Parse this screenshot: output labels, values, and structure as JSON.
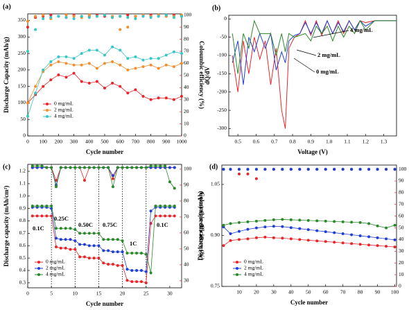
{
  "chart_data": [
    {
      "type": "line",
      "panel_label": "(a)",
      "xlabel": "Cycle number",
      "ylabel": "Discharge Capacity (mAh/g)",
      "y2label": "Coloumbic efficiency (%)",
      "xlim": [
        0,
        1000
      ],
      "xticks": [
        0,
        100,
        200,
        300,
        400,
        500,
        600,
        700,
        800,
        900,
        1000
      ],
      "ylim": [
        0,
        370
      ],
      "yticks": [
        0,
        50,
        100,
        150,
        200,
        250,
        300,
        350
      ],
      "y2lim": [
        0,
        101
      ],
      "y2ticks": [
        0,
        10,
        20,
        30,
        40,
        50,
        60,
        70,
        80,
        90,
        100
      ],
      "y2color": "#e8262a",
      "legend": "lower left",
      "x": [
        0,
        50,
        100,
        150,
        200,
        250,
        300,
        350,
        400,
        450,
        500,
        550,
        600,
        650,
        700,
        750,
        800,
        850,
        900,
        950,
        1000
      ],
      "series": [
        {
          "name": "0 mg/mL",
          "color": "#e8262a",
          "mode": "lines+markers",
          "values": [
            100,
            125,
            150,
            170,
            185,
            178,
            190,
            165,
            160,
            165,
            145,
            160,
            150,
            130,
            140,
            120,
            110,
            115,
            115,
            110,
            120
          ]
        },
        {
          "name": "2 mg/mL",
          "color": "#f28e2b",
          "mode": "lines+markers",
          "values": [
            100,
            150,
            195,
            215,
            225,
            220,
            215,
            215,
            220,
            205,
            220,
            225,
            215,
            200,
            205,
            210,
            215,
            205,
            215,
            210,
            220
          ]
        },
        {
          "name": "4 mg/mL",
          "color": "#35c6c6",
          "mode": "lines+markers",
          "values": [
            60,
            130,
            200,
            225,
            240,
            240,
            235,
            250,
            260,
            260,
            245,
            270,
            260,
            235,
            240,
            230,
            235,
            235,
            245,
            255,
            250
          ]
        },
        {
          "color": "#e8262a",
          "axis": "y2",
          "mode": "markers",
          "values": [
            90,
            98,
            99,
            100,
            99,
            98,
            100,
            99,
            99,
            100,
            99,
            98,
            99,
            100,
            99,
            99,
            100,
            99,
            99,
            100,
            99
          ]
        },
        {
          "color": "#f28e2b",
          "axis": "y2",
          "mode": "markers",
          "values": [
            95,
            99,
            100,
            97,
            99,
            100,
            99,
            98,
            100,
            99,
            100,
            99,
            88,
            90,
            99,
            100,
            99,
            100,
            99,
            99,
            100
          ]
        },
        {
          "color": "#35c6c6",
          "axis": "y2",
          "mode": "markers",
          "values": [
            70,
            88,
            97,
            98,
            99,
            98,
            97,
            99,
            98,
            99,
            100,
            98,
            99,
            98,
            97,
            99,
            98,
            99,
            100,
            98,
            99
          ]
        }
      ]
    },
    {
      "type": "line",
      "panel_label": "(b)",
      "xlabel": "Voltage (V)",
      "ylabel": "dQ/dV",
      "xlim": [
        0.45,
        1.37
      ],
      "xticks": [
        0.5,
        0.6,
        0.7,
        0.8,
        0.9,
        {
          "value": 1,
          "label": "1.0"
        },
        1.1,
        1.2,
        1.3
      ],
      "ylim": [
        -320,
        10
      ],
      "yticks": [
        -300,
        -250,
        -200,
        -150,
        -100,
        -50,
        0
      ],
      "x": [
        0.47,
        0.5,
        0.53,
        0.56,
        0.59,
        0.62,
        0.65,
        0.68,
        0.71,
        0.74,
        0.76,
        0.78,
        0.81,
        0.84,
        0.87,
        0.9,
        0.93,
        0.96,
        0.99,
        1.02,
        1.05,
        1.08,
        1.11,
        1.14,
        1.17,
        1.2,
        1.25,
        1.3,
        1.37
      ],
      "annotations": [
        "4 mg/mL",
        "2 mg/mL",
        "0 mg/mL"
      ],
      "series": [
        {
          "color": "#e8262a",
          "mode": "lines",
          "values": [
            -100,
            -200,
            -60,
            -150,
            -50,
            -110,
            -60,
            -180,
            -80,
            -250,
            -300,
            -80,
            -50,
            -40,
            -5,
            -45,
            -5,
            -45,
            -5,
            -40,
            -5,
            -40,
            -5,
            -30,
            -5,
            -10,
            -5,
            -5,
            -5
          ]
        },
        {
          "color": "#1f3fd6",
          "mode": "lines",
          "values": [
            -120,
            -60,
            -180,
            -50,
            -90,
            -40,
            -80,
            -40,
            -140,
            -90,
            -120,
            -60,
            -45,
            -40,
            -10,
            -40,
            -10,
            -40,
            -5,
            -40,
            -10,
            -35,
            -5,
            -30,
            -5,
            -20,
            -5,
            -5,
            -5
          ]
        },
        {
          "color": "#2a8a2a",
          "mode": "lines",
          "values": [
            -40,
            -150,
            -40,
            -80,
            -5,
            -40,
            -40,
            -40,
            -100,
            -40,
            -90,
            -40,
            -50,
            -45,
            -40,
            -60,
            -20,
            -40,
            -20,
            -60,
            -20,
            -50,
            -20,
            -40,
            -5,
            -30,
            -5,
            -5,
            -5
          ]
        }
      ]
    },
    {
      "type": "line",
      "panel_label": "(c)",
      "xlabel": "Cycle number",
      "ylabel": "Discharge capacity (mAh/cm²)",
      "y2label": "Coloumbic efficiency (%)",
      "xlim": [
        0,
        32.5
      ],
      "xticks": [
        0,
        5,
        10,
        15,
        20,
        25,
        30
      ],
      "ylim": [
        0.26,
        1.256
      ],
      "yticks": [
        0.3,
        0.4,
        0.5,
        0.6,
        0.7,
        0.8,
        0.9,
        {
          "value": 1,
          "label": "1.0"
        },
        1.1,
        1.2
      ],
      "y2lim": [
        25.6,
        103
      ],
      "y2ticks": [
        30,
        40,
        50,
        60,
        70,
        80,
        90,
        100
      ],
      "y2color": "#e8262a",
      "legend": "lower left",
      "vlines": [
        5,
        10,
        15,
        20,
        25
      ],
      "annotations": [
        "0.1C",
        "0.25C",
        "0.50C",
        "0.75C",
        "1C",
        "0.1C"
      ],
      "x": [
        1,
        2,
        3,
        4,
        5,
        6,
        7,
        8,
        9,
        10,
        11,
        12,
        13,
        14,
        15,
        16,
        17,
        18,
        19,
        20,
        21,
        22,
        23,
        24,
        25,
        26,
        27,
        28,
        29,
        30,
        31
      ],
      "series": [
        {
          "name": "0 mg/mL",
          "color": "#e8262a",
          "mode": "lines+markers",
          "values": [
            0.84,
            0.84,
            0.84,
            0.84,
            0.84,
            0.59,
            0.58,
            0.58,
            0.57,
            0.57,
            0.51,
            0.51,
            0.5,
            0.5,
            0.5,
            0.46,
            0.45,
            0.45,
            0.44,
            0.44,
            0.32,
            0.31,
            0.31,
            0.31,
            0.3,
            0.78,
            0.84,
            0.84,
            0.84,
            0.84,
            0.84
          ]
        },
        {
          "name": "2 mg/mL",
          "color": "#1f3fd6",
          "mode": "lines+markers",
          "values": [
            0.91,
            0.91,
            0.91,
            0.91,
            0.9,
            0.66,
            0.65,
            0.65,
            0.65,
            0.64,
            0.61,
            0.61,
            0.6,
            0.6,
            0.6,
            0.56,
            0.56,
            0.55,
            0.55,
            0.55,
            0.41,
            0.4,
            0.4,
            0.4,
            0.39,
            0.88,
            0.91,
            0.91,
            0.91,
            0.91,
            0.91
          ]
        },
        {
          "name": "4 mg/mL",
          "color": "#2a8a2a",
          "mode": "lines+markers",
          "values": [
            0.92,
            0.92,
            0.92,
            0.92,
            0.92,
            0.74,
            0.74,
            0.74,
            0.74,
            0.73,
            0.7,
            0.7,
            0.7,
            0.7,
            0.7,
            0.65,
            0.65,
            0.65,
            0.65,
            0.64,
            0.54,
            0.54,
            0.54,
            0.54,
            0.53,
            0.38,
            0.92,
            0.92,
            0.92,
            0.92,
            0.92
          ]
        },
        {
          "color": "#e8262a",
          "axis": "y2",
          "mode": "lines+markers",
          "values": [
            101,
            101,
            101,
            101,
            101,
            93,
            101,
            101,
            101,
            101,
            101,
            93,
            101,
            101,
            101,
            101,
            101,
            94,
            101,
            101,
            101,
            101,
            101,
            101,
            101,
            101,
            101,
            101,
            101,
            101,
            101
          ]
        },
        {
          "color": "#1f3fd6",
          "axis": "y2",
          "mode": "lines+markers",
          "values": [
            101,
            101,
            101,
            101,
            101,
            90,
            101,
            101,
            101,
            101,
            101,
            101,
            101,
            101,
            101,
            101,
            101,
            96,
            101,
            101,
            101,
            101,
            101,
            101,
            101,
            101,
            101,
            101,
            101,
            101,
            101
          ]
        },
        {
          "color": "#2a8a2a",
          "axis": "y2",
          "mode": "lines+markers",
          "values": [
            102,
            102,
            102,
            101,
            101,
            89,
            101,
            101,
            101,
            101,
            101,
            101,
            101,
            101,
            101,
            101,
            101,
            89,
            101,
            101,
            101,
            101,
            101,
            101,
            101,
            102,
            102,
            102,
            102,
            92,
            88
          ]
        }
      ]
    },
    {
      "type": "line",
      "panel_label": "(d)",
      "xlabel": "Cycle number",
      "ylabel": "Discharge capacity (mAh)",
      "y2label": "Coloumbic efficiency (%)",
      "xlim": [
        0,
        101
      ],
      "xticks": [
        10,
        20,
        30,
        40,
        50,
        60,
        70,
        80,
        90,
        100
      ],
      "ylim": [
        0.75,
        1.107
      ],
      "yticks": [
        0.75,
        {
          "value": 0.9,
          "label": "0.90"
        },
        1.05
      ],
      "y2lim": [
        0,
        103.6
      ],
      "y2ticks": [
        0,
        10,
        20,
        30,
        40,
        50,
        60,
        70,
        80,
        90,
        100
      ],
      "y2color": "#e8262a",
      "legend": "lower left",
      "x": [
        1,
        5,
        10,
        15,
        20,
        25,
        30,
        35,
        40,
        45,
        50,
        55,
        60,
        65,
        70,
        75,
        80,
        85,
        90,
        95,
        100
      ],
      "series": [
        {
          "name": "0 mg/mL",
          "color": "#e8262a",
          "mode": "lines+markers",
          "values": [
            0.87,
            0.885,
            0.888,
            0.89,
            0.893,
            0.895,
            0.893,
            0.892,
            0.89,
            0.888,
            0.886,
            0.884,
            0.882,
            0.88,
            0.878,
            0.876,
            0.874,
            0.872,
            0.87,
            0.868,
            0.866
          ]
        },
        {
          "name": "2 mg/mL",
          "color": "#1f3fd6",
          "mode": "lines+markers",
          "values": [
            0.925,
            0.905,
            0.912,
            0.918,
            0.922,
            0.925,
            0.927,
            0.926,
            0.923,
            0.92,
            0.917,
            0.914,
            0.911,
            0.908,
            0.905,
            0.902,
            0.899,
            0.896,
            0.893,
            0.89,
            0.887
          ]
        },
        {
          "name": "4 mg/mL",
          "color": "#2a8a2a",
          "mode": "lines+markers",
          "values": [
            0.93,
            0.935,
            0.938,
            0.94,
            0.942,
            0.944,
            0.946,
            0.947,
            0.946,
            0.945,
            0.944,
            0.943,
            0.942,
            0.941,
            0.94,
            0.939,
            0.938,
            0.935,
            0.928,
            0.922,
            0.93
          ]
        },
        {
          "color": "#2a8a2a",
          "axis": "y2",
          "mode": "markers",
          "values": [
            100,
            100,
            100,
            100,
            100,
            100,
            100,
            100,
            100,
            100,
            100,
            100,
            100,
            100,
            100,
            100,
            100,
            100,
            100,
            100,
            100
          ]
        },
        {
          "color": "#e8262a",
          "axis": "y2",
          "mode": "markers",
          "values": [
            100,
            100,
            96,
            96,
            92,
            100,
            100,
            100,
            100,
            100,
            100,
            100,
            100,
            100,
            100,
            100,
            100,
            100,
            100,
            100,
            100
          ]
        },
        {
          "color": "#1f3fd6",
          "axis": "y2",
          "mode": "markers",
          "values": [
            100,
            100,
            100,
            100,
            100,
            100,
            100,
            100,
            100,
            100,
            100,
            100,
            100,
            100,
            100,
            100,
            100,
            100,
            100,
            100,
            100
          ]
        }
      ]
    }
  ]
}
